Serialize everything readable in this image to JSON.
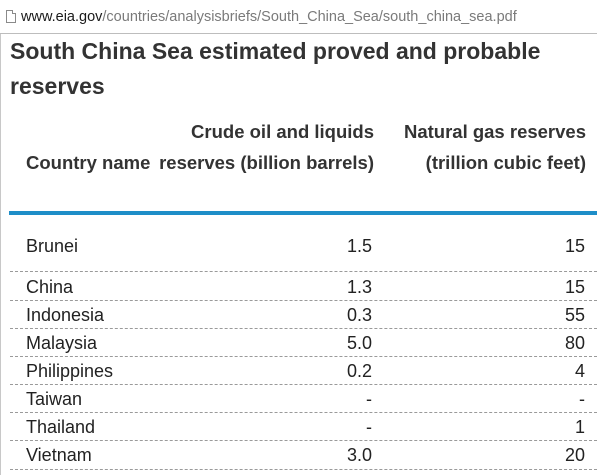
{
  "address_bar": {
    "host": "www.eia.gov",
    "path": "/countries/analysisbriefs/South_China_Sea/south_china_sea.pdf"
  },
  "table": {
    "title": "South China Sea estimated proved and probable reserves",
    "headers": {
      "country": "Country name",
      "oil": "Crude oil and liquids reserves (billion barrels)",
      "gas": "Natural gas reserves (trillion cubic feet)"
    },
    "rows": [
      {
        "country": "Brunei",
        "oil": "1.5",
        "gas": "15"
      },
      {
        "country": "China",
        "oil": "1.3",
        "gas": "15"
      },
      {
        "country": "Indonesia",
        "oil": "0.3",
        "gas": "55"
      },
      {
        "country": "Malaysia",
        "oil": "5.0",
        "gas": "80"
      },
      {
        "country": "Philippines",
        "oil": "0.2",
        "gas": "4"
      },
      {
        "country": "Taiwan",
        "oil": "-",
        "gas": "-"
      },
      {
        "country": "Thailand",
        "oil": "-",
        "gas": "1"
      },
      {
        "country": "Vietnam",
        "oil": "3.0",
        "gas": "20"
      }
    ]
  },
  "colors": {
    "header_rule": "#1e8ec8",
    "text": "#222222",
    "url_path": "#7a7a7a"
  }
}
